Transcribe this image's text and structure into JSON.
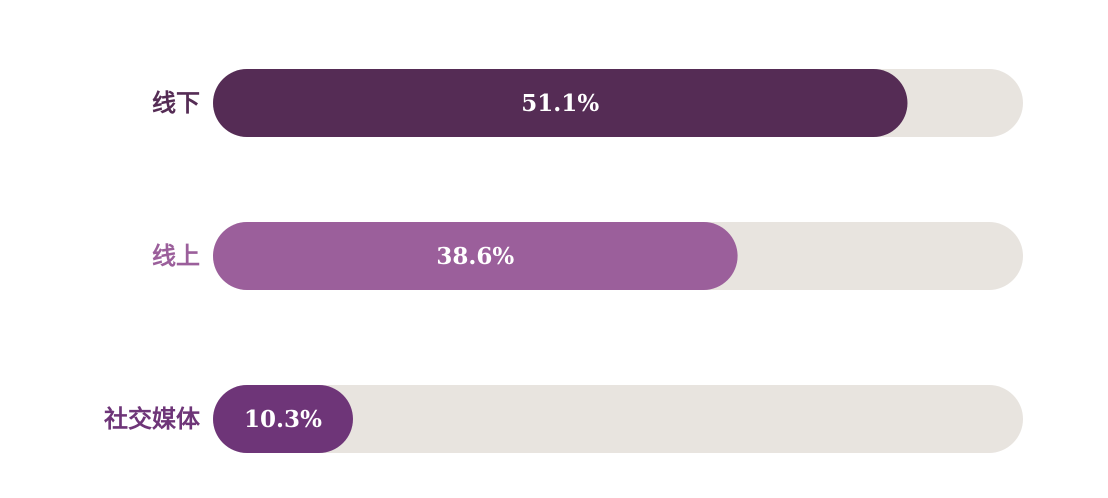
{
  "chart_data": {
    "type": "bar",
    "orientation": "horizontal",
    "categories": [
      "线下",
      "线上",
      "社交媒体"
    ],
    "values": [
      51.1,
      38.6,
      10.3
    ],
    "value_labels": [
      "51.1%",
      "38.6%",
      "10.3%"
    ],
    "unit": "%",
    "xlim": [
      0,
      59.6
    ],
    "title": "",
    "xlabel": "",
    "ylabel": "",
    "grid": false,
    "legend": "none",
    "colors": {
      "bars": [
        "#552c55",
        "#9b5f9b",
        "#6e3578"
      ],
      "labels": [
        "#552c55",
        "#9b5f9b",
        "#6e3578"
      ],
      "track": "#e8e4df"
    }
  }
}
